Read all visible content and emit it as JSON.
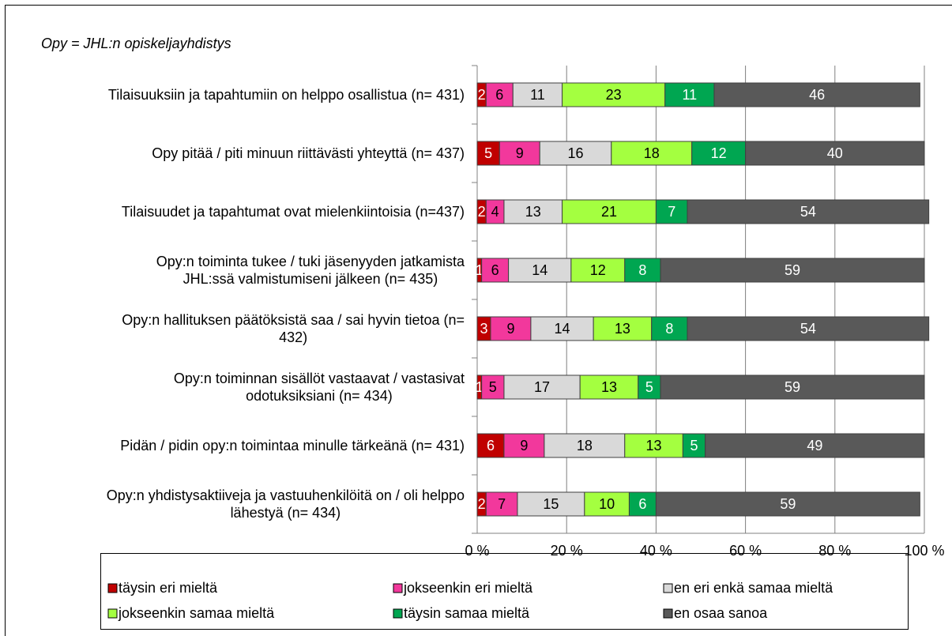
{
  "chart_data": {
    "type": "stacked_barh",
    "subtitle": "Opy = JHL:n opiskeljayhdistys",
    "categories": [
      "Tilaisuuksiin ja tapahtumiin on helppo osallistua (n= 431)",
      "Opy pitää / piti minuun riittävästi yhteyttä (n= 437)",
      "Tilaisuudet ja tapahtumat ovat mielenkiintoisia (n=437)",
      "Opy:n toiminta tukee / tuki jäsenyyden jatkamista\nJHL:ssä valmistumiseni jälkeen (n= 435)",
      "Opy:n hallituksen päätöksistä saa / sai hyvin tietoa (n=\n432)",
      "Opy:n toiminnan sisällöt vastaavat / vastasivat\nodotuksiksiani (n= 434)",
      "Pidän / pidin opy:n toimintaa minulle tärkeänä (n= 431)",
      "Opy:n yhdistysaktiiveja ja vastuuhenkilöitä on / oli helppo\nlähestyä (n= 434)"
    ],
    "series": [
      {
        "name": "täysin eri mieltä",
        "color": "#c00000",
        "values": [
          2,
          5,
          2,
          1,
          3,
          1,
          6,
          2
        ]
      },
      {
        "name": "jokseenkin eri mieltä",
        "color": "#f2389c",
        "values": [
          6,
          9,
          4,
          6,
          9,
          5,
          9,
          7
        ]
      },
      {
        "name": "en eri enkä samaa mieltä",
        "color": "#d9d9d9",
        "values": [
          11,
          16,
          13,
          14,
          14,
          17,
          18,
          15
        ]
      },
      {
        "name": "jokseenkin samaa mieltä",
        "color": "#a4ff40",
        "values": [
          23,
          18,
          21,
          12,
          13,
          13,
          13,
          10
        ]
      },
      {
        "name": "täysin samaa mieltä",
        "color": "#00a651",
        "values": [
          11,
          12,
          7,
          8,
          8,
          5,
          5,
          6
        ]
      },
      {
        "name": "en osaa sanoa",
        "color": "#595959",
        "values": [
          46,
          40,
          54,
          59,
          54,
          59,
          49,
          59
        ]
      }
    ],
    "xlim": [
      0,
      100
    ],
    "xticks": [
      {
        "value": 0,
        "label": "0 %"
      },
      {
        "value": 20,
        "label": "20 %"
      },
      {
        "value": 40,
        "label": "40 %"
      },
      {
        "value": 60,
        "label": "60 %"
      },
      {
        "value": 80,
        "label": "80 %"
      },
      {
        "value": 100,
        "label": "100 %"
      }
    ],
    "grid": true,
    "legend": "bottom"
  }
}
